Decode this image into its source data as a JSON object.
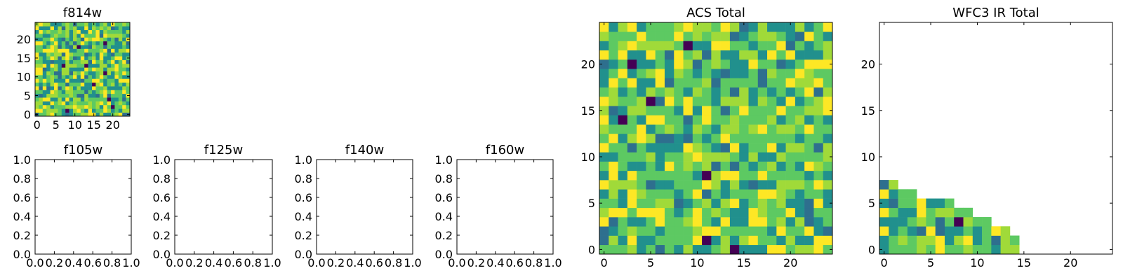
{
  "colormap": [
    "#440154",
    "#3b528b",
    "#21908d",
    "#5dc962",
    "#fde725"
  ],
  "chart_data": [
    {
      "id": "f814w",
      "type": "heatmap",
      "title": "f814w",
      "xlim": [
        -0.5,
        24.5
      ],
      "ylim": [
        -0.5,
        24.5
      ],
      "xticks": [
        0,
        5,
        10,
        15,
        20
      ],
      "yticks": [
        0,
        5,
        10,
        15,
        20
      ],
      "grid_size": 25,
      "fill": "full",
      "seed": 814
    },
    {
      "id": "f105w",
      "type": "heatmap",
      "title": "f105w",
      "xlim": [
        0,
        1
      ],
      "ylim": [
        0,
        1
      ],
      "xticks": [
        "0.0",
        "0.2",
        "0.4",
        "0.6",
        "0.8",
        "1.0"
      ],
      "yticks": [
        "0.0",
        "0.2",
        "0.4",
        "0.6",
        "0.8",
        "1.0"
      ],
      "fill": "empty"
    },
    {
      "id": "f125w",
      "type": "heatmap",
      "title": "f125w",
      "xlim": [
        0,
        1
      ],
      "ylim": [
        0,
        1
      ],
      "xticks": [
        "0.0",
        "0.2",
        "0.4",
        "0.6",
        "0.8",
        "1.0"
      ],
      "yticks": [
        "0.0",
        "0.2",
        "0.4",
        "0.6",
        "0.8",
        "1.0"
      ],
      "fill": "empty"
    },
    {
      "id": "f140w",
      "type": "heatmap",
      "title": "f140w",
      "xlim": [
        0,
        1
      ],
      "ylim": [
        0,
        1
      ],
      "xticks": [
        "0.0",
        "0.2",
        "0.4",
        "0.6",
        "0.8",
        "1.0"
      ],
      "yticks": [
        "0.0",
        "0.2",
        "0.4",
        "0.6",
        "0.8",
        "1.0"
      ],
      "fill": "empty"
    },
    {
      "id": "f160w",
      "type": "heatmap",
      "title": "f160w",
      "xlim": [
        0,
        1
      ],
      "ylim": [
        0,
        1
      ],
      "xticks": [
        "0.0",
        "0.2",
        "0.4",
        "0.6",
        "0.8",
        "1.0"
      ],
      "yticks": [
        "0.0",
        "0.2",
        "0.4",
        "0.6",
        "0.8",
        "1.0"
      ],
      "fill": "empty"
    },
    {
      "id": "acs_total",
      "type": "heatmap",
      "title": "ACS Total",
      "xlim": [
        -0.5,
        24.5
      ],
      "ylim": [
        -0.5,
        24.5
      ],
      "xticks": [
        0,
        5,
        10,
        15,
        20
      ],
      "yticks": [
        0,
        5,
        10,
        15,
        20
      ],
      "grid_size": 25,
      "fill": "full",
      "seed": 2701,
      "dark_cells": [
        [
          9,
          22
        ],
        [
          3,
          20
        ],
        [
          5,
          16
        ],
        [
          2,
          14
        ],
        [
          11,
          8
        ],
        [
          11,
          1
        ],
        [
          14,
          0
        ]
      ]
    },
    {
      "id": "wfc3_ir_total",
      "type": "heatmap",
      "title": "WFC3 IR Total",
      "xlim": [
        -0.5,
        24.5
      ],
      "ylim": [
        -0.5,
        24.5
      ],
      "xticks": [
        0,
        5,
        10,
        15,
        20
      ],
      "yticks": [
        0,
        5,
        10,
        15,
        20
      ],
      "grid_size": 25,
      "fill": "lower-triangle",
      "row_lengths": [
        15,
        15,
        14,
        12,
        10,
        8,
        4,
        2
      ],
      "seed": 3117,
      "dark_cells": [
        [
          8,
          3
        ]
      ]
    }
  ]
}
